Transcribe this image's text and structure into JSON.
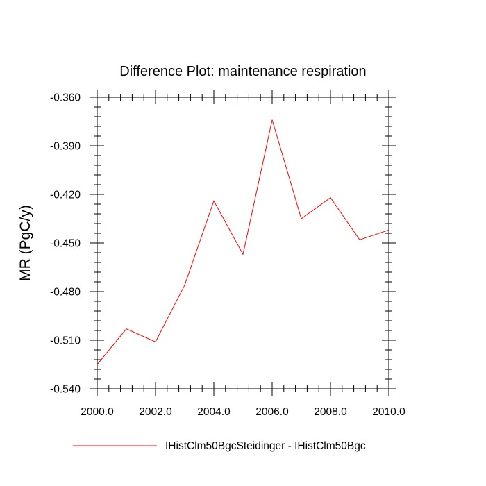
{
  "chart_data": {
    "type": "line",
    "title": "Difference Plot: maintenance respiration",
    "xlabel": "",
    "ylabel": "MR  (PgC/y)",
    "xlim": [
      2000,
      2010
    ],
    "ylim": [
      -0.54,
      -0.36
    ],
    "x_ticks": [
      "2000.0",
      "2002.0",
      "2004.0",
      "2006.0",
      "2008.0",
      "2010.0"
    ],
    "y_ticks": [
      "-0.360",
      "-0.390",
      "-0.420",
      "-0.450",
      "-0.480",
      "-0.510",
      "-0.540"
    ],
    "grid": false,
    "legend_position": "bottom",
    "series": [
      {
        "name": "IHistClm50BgcSteidinger - IHistClm50Bgc",
        "color": "#ff0000",
        "x": [
          2000,
          2001,
          2002,
          2003,
          2004,
          2005,
          2006,
          2007,
          2008,
          2009,
          2010
        ],
        "values": [
          -0.525,
          -0.503,
          -0.511,
          -0.476,
          -0.424,
          -0.457,
          -0.374,
          -0.435,
          -0.422,
          -0.448,
          -0.442
        ]
      }
    ]
  }
}
